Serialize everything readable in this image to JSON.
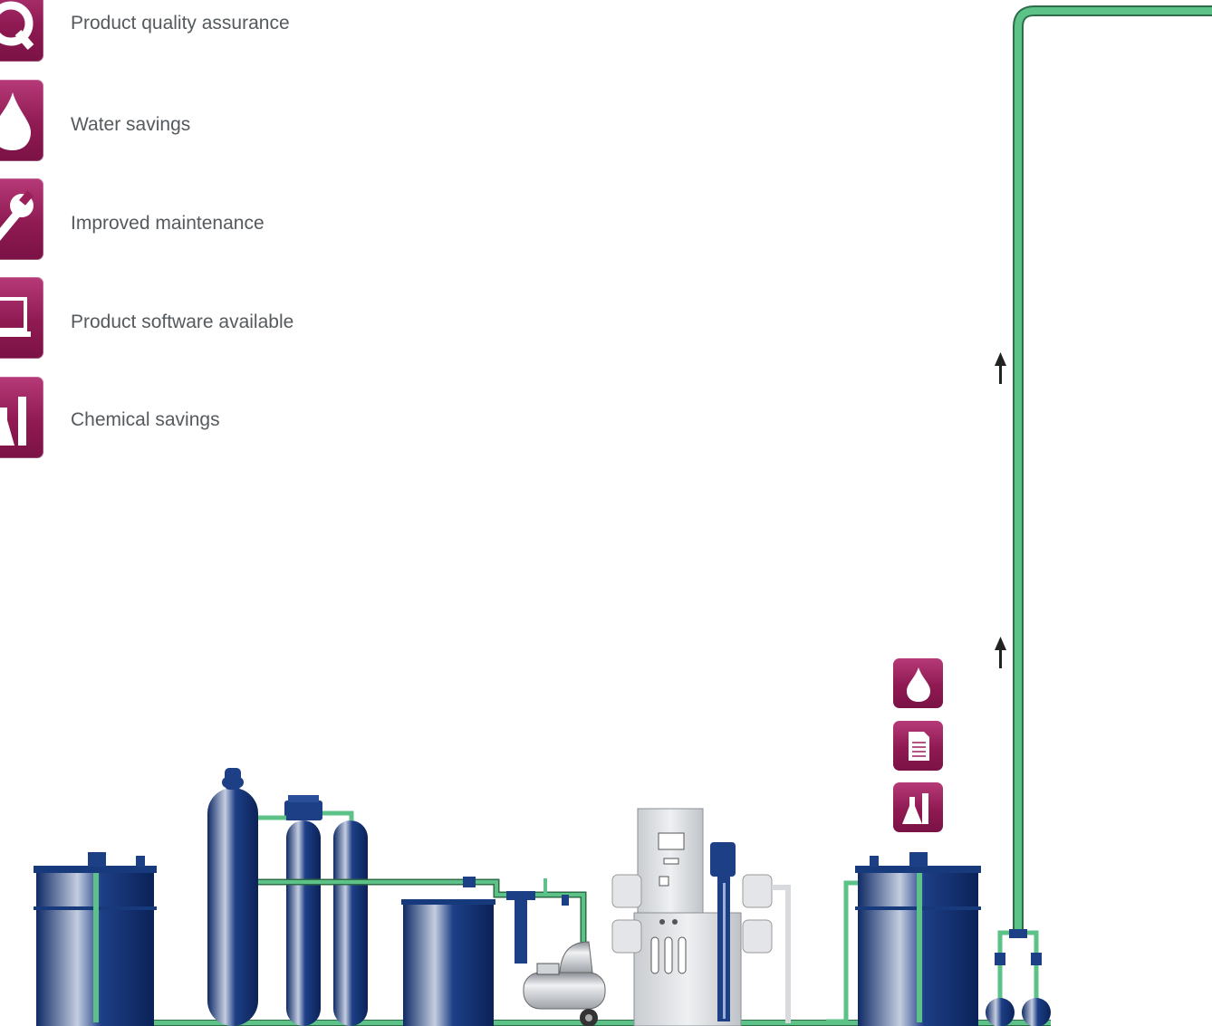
{
  "legend": {
    "items": [
      {
        "label": "Product quality assurance",
        "icon": "quality-q-icon"
      },
      {
        "label": "Water savings",
        "icon": "water-drop-icon"
      },
      {
        "label": "Improved maintenance",
        "icon": "wrench-icon"
      },
      {
        "label": "Product software available",
        "icon": "laptop-icon"
      },
      {
        "label": "Chemical savings",
        "icon": "flask-icon"
      }
    ]
  },
  "feature_icons": [
    "water-drop-icon",
    "document-icon",
    "flask-icon"
  ],
  "colors": {
    "icon_background": "#8f1a52",
    "pipe_green": "#4cb877",
    "vessel_blue": "#1a3a7a",
    "label_gray": "#555a5e"
  }
}
